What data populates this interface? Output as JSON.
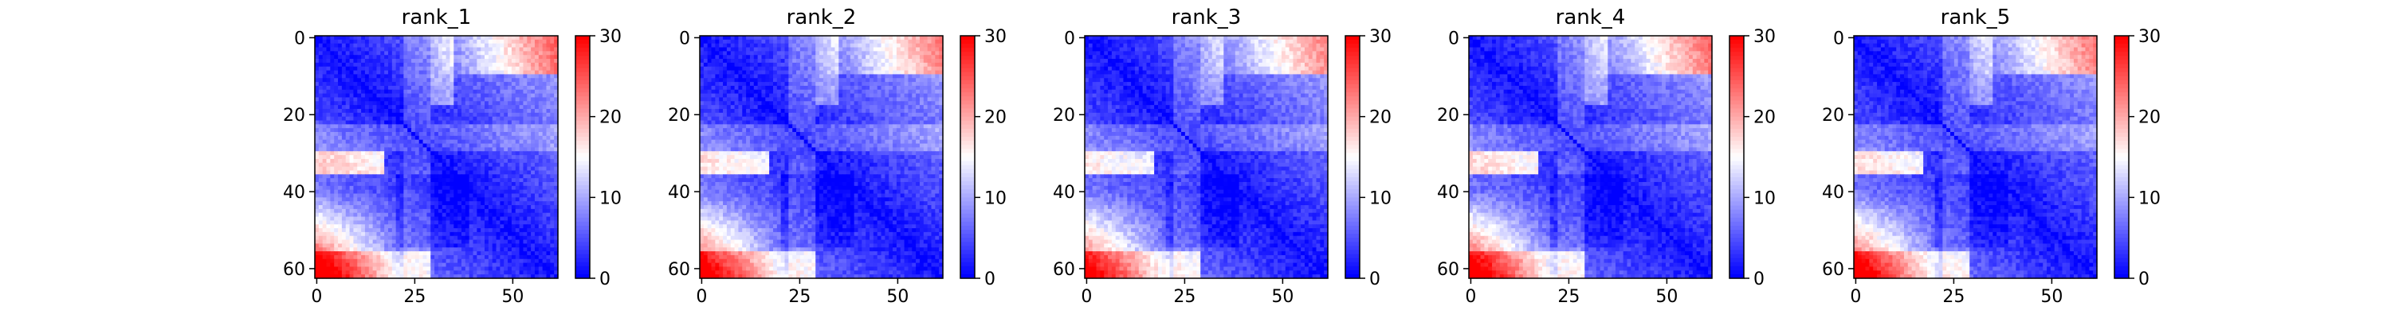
{
  "chart_data": [
    {
      "type": "heatmap",
      "title": "rank_1",
      "size": 63,
      "xticks": [
        0,
        25,
        50
      ],
      "yticks": [
        0,
        20,
        40,
        60
      ],
      "xlim": [
        0,
        62
      ],
      "ylim": [
        62,
        0
      ],
      "colorbar": {
        "range": [
          0,
          30
        ],
        "ticks": [
          0,
          10,
          20,
          30
        ],
        "colormap": "bwr"
      },
      "red_block_strength": 1.0
    },
    {
      "type": "heatmap",
      "title": "rank_2",
      "size": 63,
      "xticks": [
        0,
        25,
        50
      ],
      "yticks": [
        0,
        20,
        40,
        60
      ],
      "xlim": [
        0,
        62
      ],
      "ylim": [
        62,
        0
      ],
      "colorbar": {
        "range": [
          0,
          30
        ],
        "ticks": [
          0,
          10,
          20,
          30
        ],
        "colormap": "bwr"
      },
      "red_block_strength": 0.9
    },
    {
      "type": "heatmap",
      "title": "rank_3",
      "size": 63,
      "xticks": [
        0,
        25,
        50
      ],
      "yticks": [
        0,
        20,
        40,
        60
      ],
      "xlim": [
        0,
        62
      ],
      "ylim": [
        62,
        0
      ],
      "colorbar": {
        "range": [
          0,
          30
        ],
        "ticks": [
          0,
          10,
          20,
          30
        ],
        "colormap": "bwr"
      },
      "red_block_strength": 0.85
    },
    {
      "type": "heatmap",
      "title": "rank_4",
      "size": 63,
      "xticks": [
        0,
        25,
        50
      ],
      "yticks": [
        0,
        20,
        40,
        60
      ],
      "xlim": [
        0,
        62
      ],
      "ylim": [
        62,
        0
      ],
      "colorbar": {
        "range": [
          0,
          30
        ],
        "ticks": [
          0,
          10,
          20,
          30
        ],
        "colormap": "bwr"
      },
      "red_block_strength": 0.95
    },
    {
      "type": "heatmap",
      "title": "rank_5",
      "size": 63,
      "xticks": [
        0,
        25,
        50
      ],
      "yticks": [
        0,
        20,
        40,
        60
      ],
      "xlim": [
        0,
        62
      ],
      "ylim": [
        62,
        0
      ],
      "colorbar": {
        "range": [
          0,
          30
        ],
        "ticks": [
          0,
          10,
          20,
          30
        ],
        "colormap": "bwr"
      },
      "red_block_strength": 0.92
    }
  ],
  "colors": {
    "low": "#0000ff",
    "mid": "#ffffff",
    "high": "#ff0000"
  }
}
